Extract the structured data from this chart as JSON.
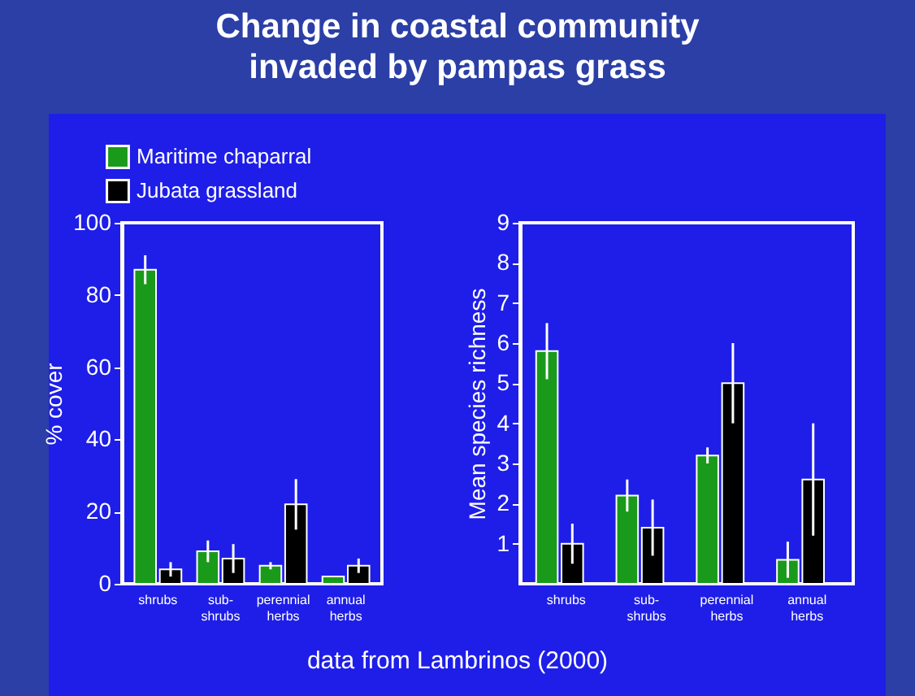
{
  "chart_data": [
    {
      "type": "bar",
      "title": "Change in coastal community invaded by pampas grass",
      "ylabel": "% cover",
      "categories": [
        "shrubs",
        "sub-\nshrubs",
        "perennial\nherbs",
        "annual\nherbs"
      ],
      "ylim": [
        0,
        100
      ],
      "yticks": [
        0,
        20,
        40,
        60,
        80,
        100
      ],
      "legend": "top left",
      "annotations": [
        "data from Lambrinos (2000)"
      ],
      "series": [
        {
          "name": "Maritime chaparral",
          "color": "#1a9a1a",
          "values": [
            87,
            9,
            5,
            2
          ],
          "errors": [
            4,
            3,
            1,
            null
          ]
        },
        {
          "name": "Jubata grassland",
          "color": "#000000",
          "values": [
            4,
            7,
            22,
            5
          ],
          "errors": [
            2,
            4,
            7,
            2
          ]
        }
      ]
    },
    {
      "type": "bar",
      "ylabel": "Mean species richness",
      "categories": [
        "shrubs",
        "sub-\nshrubs",
        "perennial\nherbs",
        "annual\nherbs"
      ],
      "ylim": [
        0,
        9
      ],
      "yticks": [
        1,
        2,
        3,
        4,
        5,
        6,
        7,
        8,
        9
      ],
      "series": [
        {
          "color": "#1a9a1a",
          "values": [
            5.8,
            2.2,
            3.2,
            0.6
          ],
          "errors": [
            0.7,
            0.4,
            0.2,
            0.45
          ]
        },
        {
          "color": "#000000",
          "values": [
            1.0,
            1.4,
            5.0,
            2.6
          ],
          "errors": [
            0.5,
            0.7,
            1.0,
            1.4
          ]
        }
      ]
    }
  ]
}
